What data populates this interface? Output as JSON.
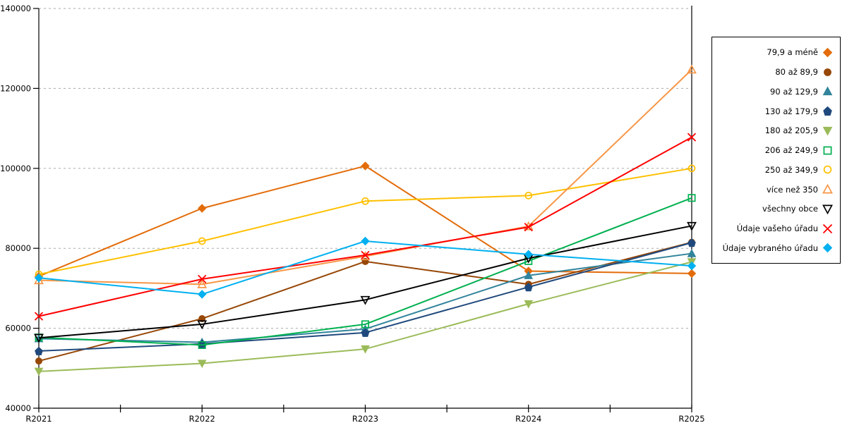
{
  "chart_data": {
    "type": "line",
    "title": "",
    "xlabel": "",
    "ylabel": "",
    "x": [
      "R2021",
      "R2022",
      "R2023",
      "R2024",
      "R2025"
    ],
    "ylim": [
      40000,
      140000
    ],
    "yticks": [
      40000,
      60000,
      80000,
      100000,
      120000,
      140000
    ],
    "grid": "horizontal-dashed",
    "legend_position": "right",
    "series": [
      {
        "name": "79,9 a méně",
        "color": "#E36C09",
        "marker": "diamond",
        "fill": "solid",
        "values": [
          73000,
          90000,
          100600,
          74300,
          73700
        ]
      },
      {
        "name": "80 až 89,9",
        "color": "#974706",
        "marker": "circle",
        "fill": "solid",
        "values": [
          51800,
          62400,
          76700,
          71000,
          81500
        ]
      },
      {
        "name": "90 až 129,9",
        "color": "#31849B",
        "marker": "triangle-up",
        "fill": "solid",
        "values": [
          57400,
          56500,
          59800,
          73200,
          78700
        ]
      },
      {
        "name": "130 až 179,9",
        "color": "#1F497D",
        "marker": "pentagon",
        "fill": "solid",
        "values": [
          54300,
          56100,
          58900,
          70300,
          81400
        ]
      },
      {
        "name": "180 až 205,9",
        "color": "#9BBB59",
        "marker": "triangle-down",
        "fill": "solid",
        "values": [
          49200,
          51200,
          54800,
          66100,
          76600
        ]
      },
      {
        "name": "206 až 249,9",
        "color": "#00B050",
        "marker": "square",
        "fill": "open",
        "values": [
          57700,
          55800,
          61000,
          76800,
          92600
        ]
      },
      {
        "name": "250 až 349,9",
        "color": "#FFC000",
        "marker": "circle",
        "fill": "open",
        "values": [
          73500,
          81800,
          91800,
          93200,
          100000
        ]
      },
      {
        "name": "více než 350",
        "color": "#F79646",
        "marker": "triangle-up",
        "fill": "open",
        "values": [
          72000,
          71000,
          78000,
          85500,
          124700
        ]
      },
      {
        "name": "všechny obce",
        "color": "#000000",
        "marker": "triangle-down",
        "fill": "open",
        "values": [
          57600,
          61000,
          67100,
          77500,
          85600
        ]
      },
      {
        "name": "Údaje vašeho úřadu",
        "color": "#FF0000",
        "marker": "x",
        "fill": "open",
        "values": [
          63000,
          72300,
          78300,
          85300,
          107800
        ]
      },
      {
        "name": "Údaje vybraného úřadu",
        "color": "#00B0F0",
        "marker": "diamond",
        "fill": "solid",
        "values": [
          72600,
          68500,
          81800,
          78500,
          75600
        ]
      }
    ],
    "axis_color": "#000000",
    "gridline_color": "#AAAAAA"
  }
}
